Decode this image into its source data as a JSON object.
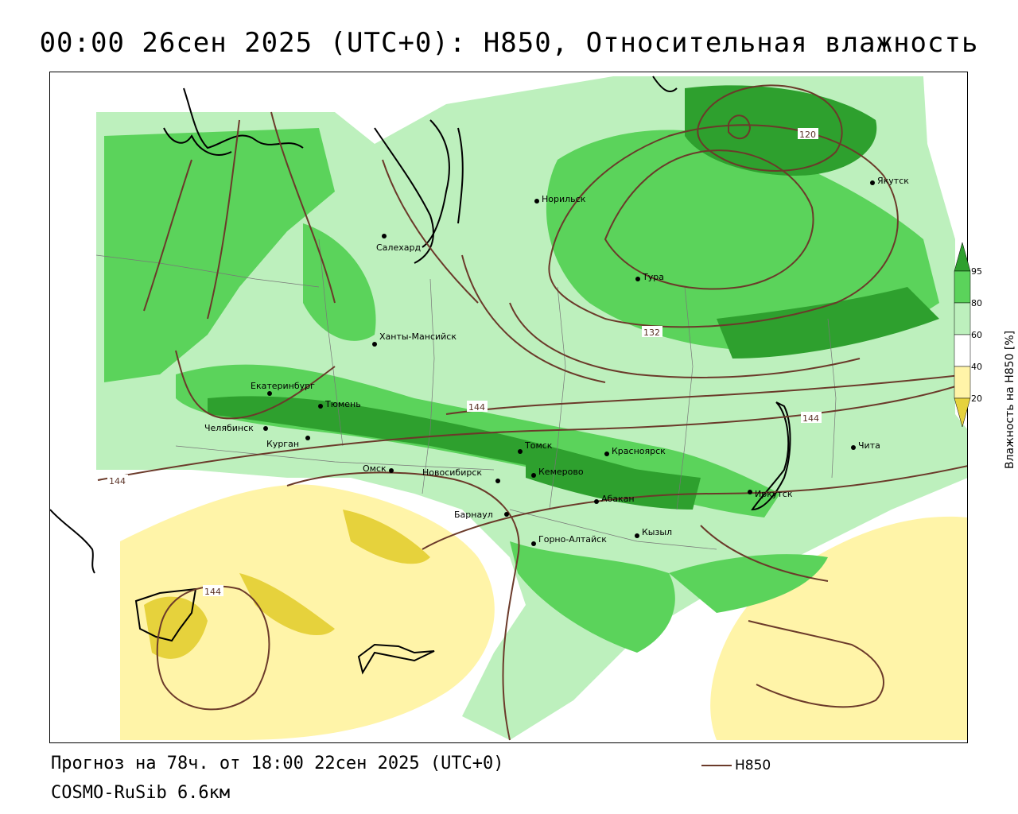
{
  "title": "00:00 26сен 2025 (UTC+0): H850, Относительная влажность",
  "forecast_text": "Прогноз на 78ч. от 18:00 22сен 2025 (UTC+0)",
  "model_text": "COSMO-RuSib 6.6км",
  "line_legend": {
    "label": "H850",
    "color": "#6b3a2a"
  },
  "humidity_legend": {
    "title": "Влажность на H850 [%]",
    "ticks": [
      "95",
      "80",
      "60",
      "40",
      "20"
    ],
    "colors": {
      "95": "#2ea02e",
      "80": "#5bd35b",
      "60": "#bdf0bd",
      "40": "#ffffff",
      "20": "#fff4a8",
      "0": "#e6d23c"
    }
  },
  "cities": [
    {
      "name": "Норильск"
    },
    {
      "name": "Якутск"
    },
    {
      "name": "Салехард"
    },
    {
      "name": "Тура"
    },
    {
      "name": "Ханты-Мансийск"
    },
    {
      "name": "Екатеринбург"
    },
    {
      "name": "Тюмень"
    },
    {
      "name": "Челябинск"
    },
    {
      "name": "Курган"
    },
    {
      "name": "Омск"
    },
    {
      "name": "Новосибирск"
    },
    {
      "name": "Томск"
    },
    {
      "name": "Красноярск"
    },
    {
      "name": "Кемерово"
    },
    {
      "name": "Барнаул"
    },
    {
      "name": "Абакан"
    },
    {
      "name": "Иркутск"
    },
    {
      "name": "Чита"
    },
    {
      "name": "Горно-Алтайск"
    },
    {
      "name": "Кызыл"
    }
  ],
  "isoline_labels": [
    "120",
    "132",
    "144",
    "144",
    "144",
    "144"
  ]
}
